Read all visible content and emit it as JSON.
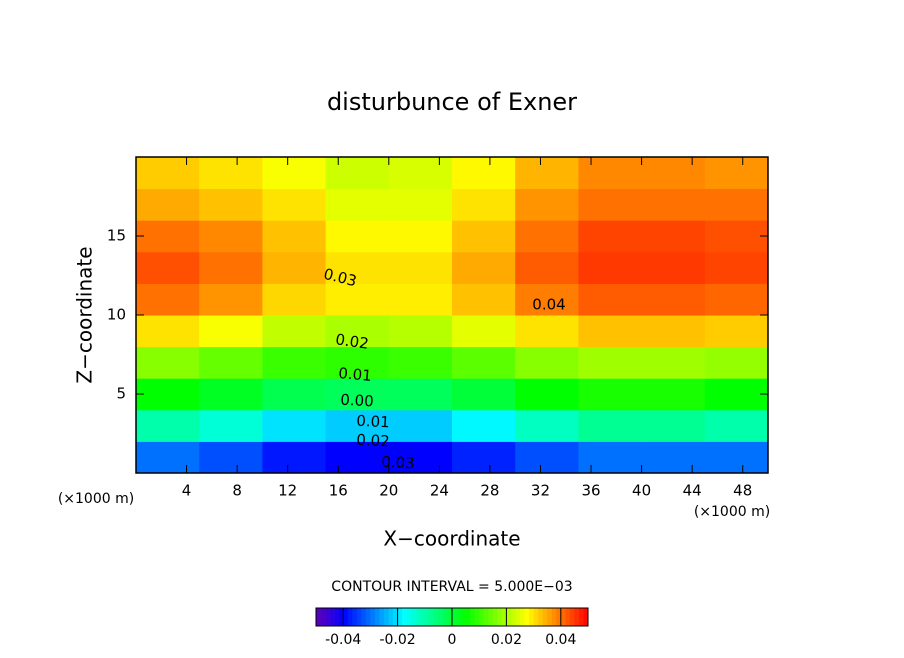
{
  "chart_data": {
    "type": "contour",
    "title": "disturbunce of Exner",
    "x_label": "X−coordinate",
    "y_label": "Z−coordinate",
    "x_unit": "(×1000 m)",
    "y_unit": "(×1000 m)",
    "xlim": [
      0,
      50
    ],
    "ylim": [
      0,
      20
    ],
    "xticks": [
      4,
      8,
      12,
      16,
      20,
      24,
      28,
      32,
      36,
      40,
      44,
      48
    ],
    "yticks": [
      5,
      10,
      15
    ],
    "x": [
      2.5,
      7.5,
      12.5,
      17.5,
      22.5,
      27.5,
      32.5,
      37.5,
      42.5,
      47.5
    ],
    "z": [
      1,
      3,
      5,
      7,
      9,
      11,
      13,
      15,
      17,
      19
    ],
    "values": [
      [
        -0.03,
        -0.033,
        -0.038,
        -0.04,
        -0.04,
        -0.037,
        -0.033,
        -0.03,
        -0.03,
        -0.03
      ],
      [
        -0.01,
        -0.014,
        -0.02,
        -0.022,
        -0.022,
        -0.018,
        -0.012,
        -0.008,
        -0.008,
        -0.01
      ],
      [
        0.005,
        0.002,
        -0.002,
        -0.003,
        -0.003,
        0.0,
        0.005,
        0.007,
        0.007,
        0.005
      ],
      [
        0.017,
        0.014,
        0.01,
        0.009,
        0.01,
        0.013,
        0.017,
        0.019,
        0.019,
        0.018
      ],
      [
        0.03,
        0.027,
        0.022,
        0.02,
        0.021,
        0.025,
        0.03,
        0.033,
        0.033,
        0.032
      ],
      [
        0.04,
        0.037,
        0.031,
        0.029,
        0.029,
        0.033,
        0.039,
        0.042,
        0.042,
        0.041
      ],
      [
        0.043,
        0.04,
        0.034,
        0.03,
        0.03,
        0.035,
        0.042,
        0.045,
        0.045,
        0.044
      ],
      [
        0.04,
        0.038,
        0.033,
        0.028,
        0.028,
        0.033,
        0.04,
        0.044,
        0.044,
        0.043
      ],
      [
        0.035,
        0.033,
        0.03,
        0.025,
        0.025,
        0.03,
        0.037,
        0.04,
        0.04,
        0.04
      ],
      [
        0.032,
        0.03,
        0.027,
        0.023,
        0.024,
        0.028,
        0.034,
        0.038,
        0.038,
        0.037
      ]
    ],
    "contour_labels": [
      "0.03",
      "0.04",
      "0.02",
      "0.01",
      "0.00",
      "0.01",
      "0.02",
      "0.03"
    ],
    "note": "CONTOUR INTERVAL = 5.000E−03",
    "clim": [
      -0.05,
      0.05
    ],
    "cticks": [
      -0.04,
      -0.02,
      0,
      0.02,
      0.04
    ]
  }
}
